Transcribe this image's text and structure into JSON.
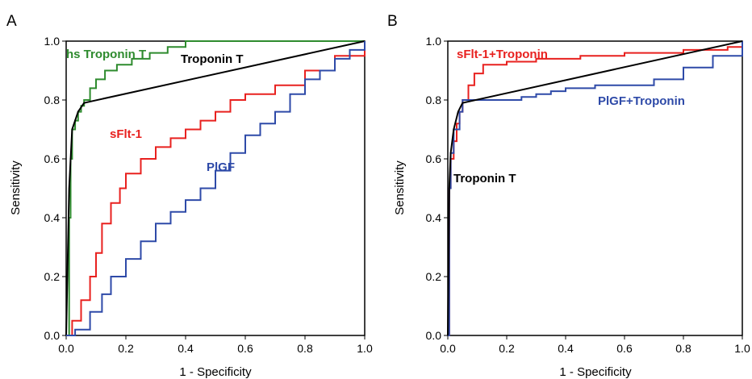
{
  "chart_data": [
    {
      "type": "line",
      "panel_label": "A",
      "xlabel": "1 - Specificity",
      "ylabel": "Sensitivity",
      "xlim": [
        0,
        1
      ],
      "ylim": [
        0,
        1
      ],
      "x_ticks": [
        "0.0",
        "0.2",
        "0.4",
        "0.6",
        "0.8",
        "1.0"
      ],
      "y_ticks": [
        "0.0",
        "0.2",
        "0.4",
        "0.6",
        "0.8",
        "1.0"
      ],
      "grid": false,
      "legend": "none",
      "series": [
        {
          "name": "hs Troponin T",
          "color": "#2e8b2e",
          "step": true,
          "points": [
            [
              0,
              0
            ],
            [
              0.01,
              0.4
            ],
            [
              0.015,
              0.6
            ],
            [
              0.02,
              0.7
            ],
            [
              0.03,
              0.73
            ],
            [
              0.04,
              0.76
            ],
            [
              0.05,
              0.78
            ],
            [
              0.06,
              0.8
            ],
            [
              0.08,
              0.84
            ],
            [
              0.1,
              0.87
            ],
            [
              0.13,
              0.9
            ],
            [
              0.17,
              0.92
            ],
            [
              0.22,
              0.94
            ],
            [
              0.28,
              0.96
            ],
            [
              0.34,
              0.98
            ],
            [
              0.4,
              1.0
            ],
            [
              0.6,
              1.0
            ],
            [
              1.0,
              1.0
            ]
          ]
        },
        {
          "name": "Troponin T",
          "color": "#000000",
          "step": false,
          "points": [
            [
              0,
              0
            ],
            [
              0.01,
              0.5
            ],
            [
              0.02,
              0.7
            ],
            [
              0.04,
              0.76
            ],
            [
              0.06,
              0.79
            ],
            [
              1.0,
              1.0
            ]
          ]
        },
        {
          "name": "sFlt-1",
          "color": "#e8211f",
          "step": true,
          "points": [
            [
              0,
              0
            ],
            [
              0.02,
              0.05
            ],
            [
              0.05,
              0.12
            ],
            [
              0.08,
              0.2
            ],
            [
              0.1,
              0.28
            ],
            [
              0.12,
              0.38
            ],
            [
              0.15,
              0.45
            ],
            [
              0.18,
              0.5
            ],
            [
              0.2,
              0.55
            ],
            [
              0.25,
              0.6
            ],
            [
              0.3,
              0.64
            ],
            [
              0.35,
              0.67
            ],
            [
              0.4,
              0.7
            ],
            [
              0.45,
              0.73
            ],
            [
              0.5,
              0.76
            ],
            [
              0.55,
              0.8
            ],
            [
              0.6,
              0.82
            ],
            [
              0.7,
              0.85
            ],
            [
              0.8,
              0.9
            ],
            [
              0.9,
              0.95
            ],
            [
              1.0,
              1.0
            ]
          ]
        },
        {
          "name": "PlGF",
          "color": "#2e4aa8",
          "step": true,
          "points": [
            [
              0,
              0
            ],
            [
              0.03,
              0.02
            ],
            [
              0.08,
              0.08
            ],
            [
              0.12,
              0.14
            ],
            [
              0.15,
              0.2
            ],
            [
              0.2,
              0.26
            ],
            [
              0.25,
              0.32
            ],
            [
              0.3,
              0.38
            ],
            [
              0.35,
              0.42
            ],
            [
              0.4,
              0.46
            ],
            [
              0.45,
              0.5
            ],
            [
              0.5,
              0.56
            ],
            [
              0.55,
              0.62
            ],
            [
              0.6,
              0.68
            ],
            [
              0.65,
              0.72
            ],
            [
              0.7,
              0.76
            ],
            [
              0.75,
              0.82
            ],
            [
              0.8,
              0.87
            ],
            [
              0.85,
              0.9
            ],
            [
              0.9,
              0.94
            ],
            [
              0.95,
              0.97
            ],
            [
              1.0,
              1.0
            ]
          ]
        }
      ]
    },
    {
      "type": "line",
      "panel_label": "B",
      "xlabel": "1 - Specificity",
      "ylabel": "Sensitivity",
      "xlim": [
        0,
        1
      ],
      "ylim": [
        0,
        1
      ],
      "x_ticks": [
        "0.0",
        "0.2",
        "0.4",
        "0.6",
        "0.8",
        "1.0"
      ],
      "y_ticks": [
        "0.0",
        "0.2",
        "0.4",
        "0.6",
        "0.8",
        "1.0"
      ],
      "grid": false,
      "legend": "none",
      "series": [
        {
          "name": "sFlt-1+Troponin",
          "color": "#e8211f",
          "step": true,
          "points": [
            [
              0,
              0
            ],
            [
              0.005,
              0.5
            ],
            [
              0.01,
              0.6
            ],
            [
              0.02,
              0.66
            ],
            [
              0.03,
              0.72
            ],
            [
              0.04,
              0.76
            ],
            [
              0.05,
              0.8
            ],
            [
              0.07,
              0.85
            ],
            [
              0.09,
              0.89
            ],
            [
              0.12,
              0.92
            ],
            [
              0.2,
              0.93
            ],
            [
              0.3,
              0.94
            ],
            [
              0.45,
              0.95
            ],
            [
              0.6,
              0.96
            ],
            [
              0.8,
              0.97
            ],
            [
              0.95,
              0.98
            ],
            [
              1.0,
              1.0
            ]
          ]
        },
        {
          "name": "PlGF+Troponin",
          "color": "#2e4aa8",
          "step": true,
          "points": [
            [
              0,
              0
            ],
            [
              0.005,
              0.5
            ],
            [
              0.01,
              0.62
            ],
            [
              0.02,
              0.7
            ],
            [
              0.04,
              0.76
            ],
            [
              0.05,
              0.8
            ],
            [
              0.15,
              0.8
            ],
            [
              0.25,
              0.81
            ],
            [
              0.3,
              0.82
            ],
            [
              0.35,
              0.83
            ],
            [
              0.4,
              0.84
            ],
            [
              0.5,
              0.85
            ],
            [
              0.6,
              0.85
            ],
            [
              0.7,
              0.87
            ],
            [
              0.8,
              0.91
            ],
            [
              0.9,
              0.95
            ],
            [
              1.0,
              1.0
            ]
          ]
        },
        {
          "name": "Troponin T",
          "color": "#000000",
          "step": false,
          "points": [
            [
              0,
              0
            ],
            [
              0.005,
              0.5
            ],
            [
              0.01,
              0.62
            ],
            [
              0.02,
              0.7
            ],
            [
              0.035,
              0.76
            ],
            [
              0.05,
              0.79
            ],
            [
              1.0,
              1.0
            ]
          ]
        }
      ]
    }
  ],
  "annotations": [
    {
      "text": "hs Troponin T",
      "color": "#2e8b2e"
    },
    {
      "text": "Troponin T",
      "color": "#000000"
    },
    {
      "text": "sFlt-1",
      "color": "#e8211f"
    },
    {
      "text": "PlGF",
      "color": "#2e4aa8"
    },
    {
      "text": "sFlt-1+Troponin",
      "color": "#e8211f"
    },
    {
      "text": "PlGF+Troponin",
      "color": "#2e4aa8"
    },
    {
      "text": "Troponin T",
      "color": "#000000"
    }
  ]
}
